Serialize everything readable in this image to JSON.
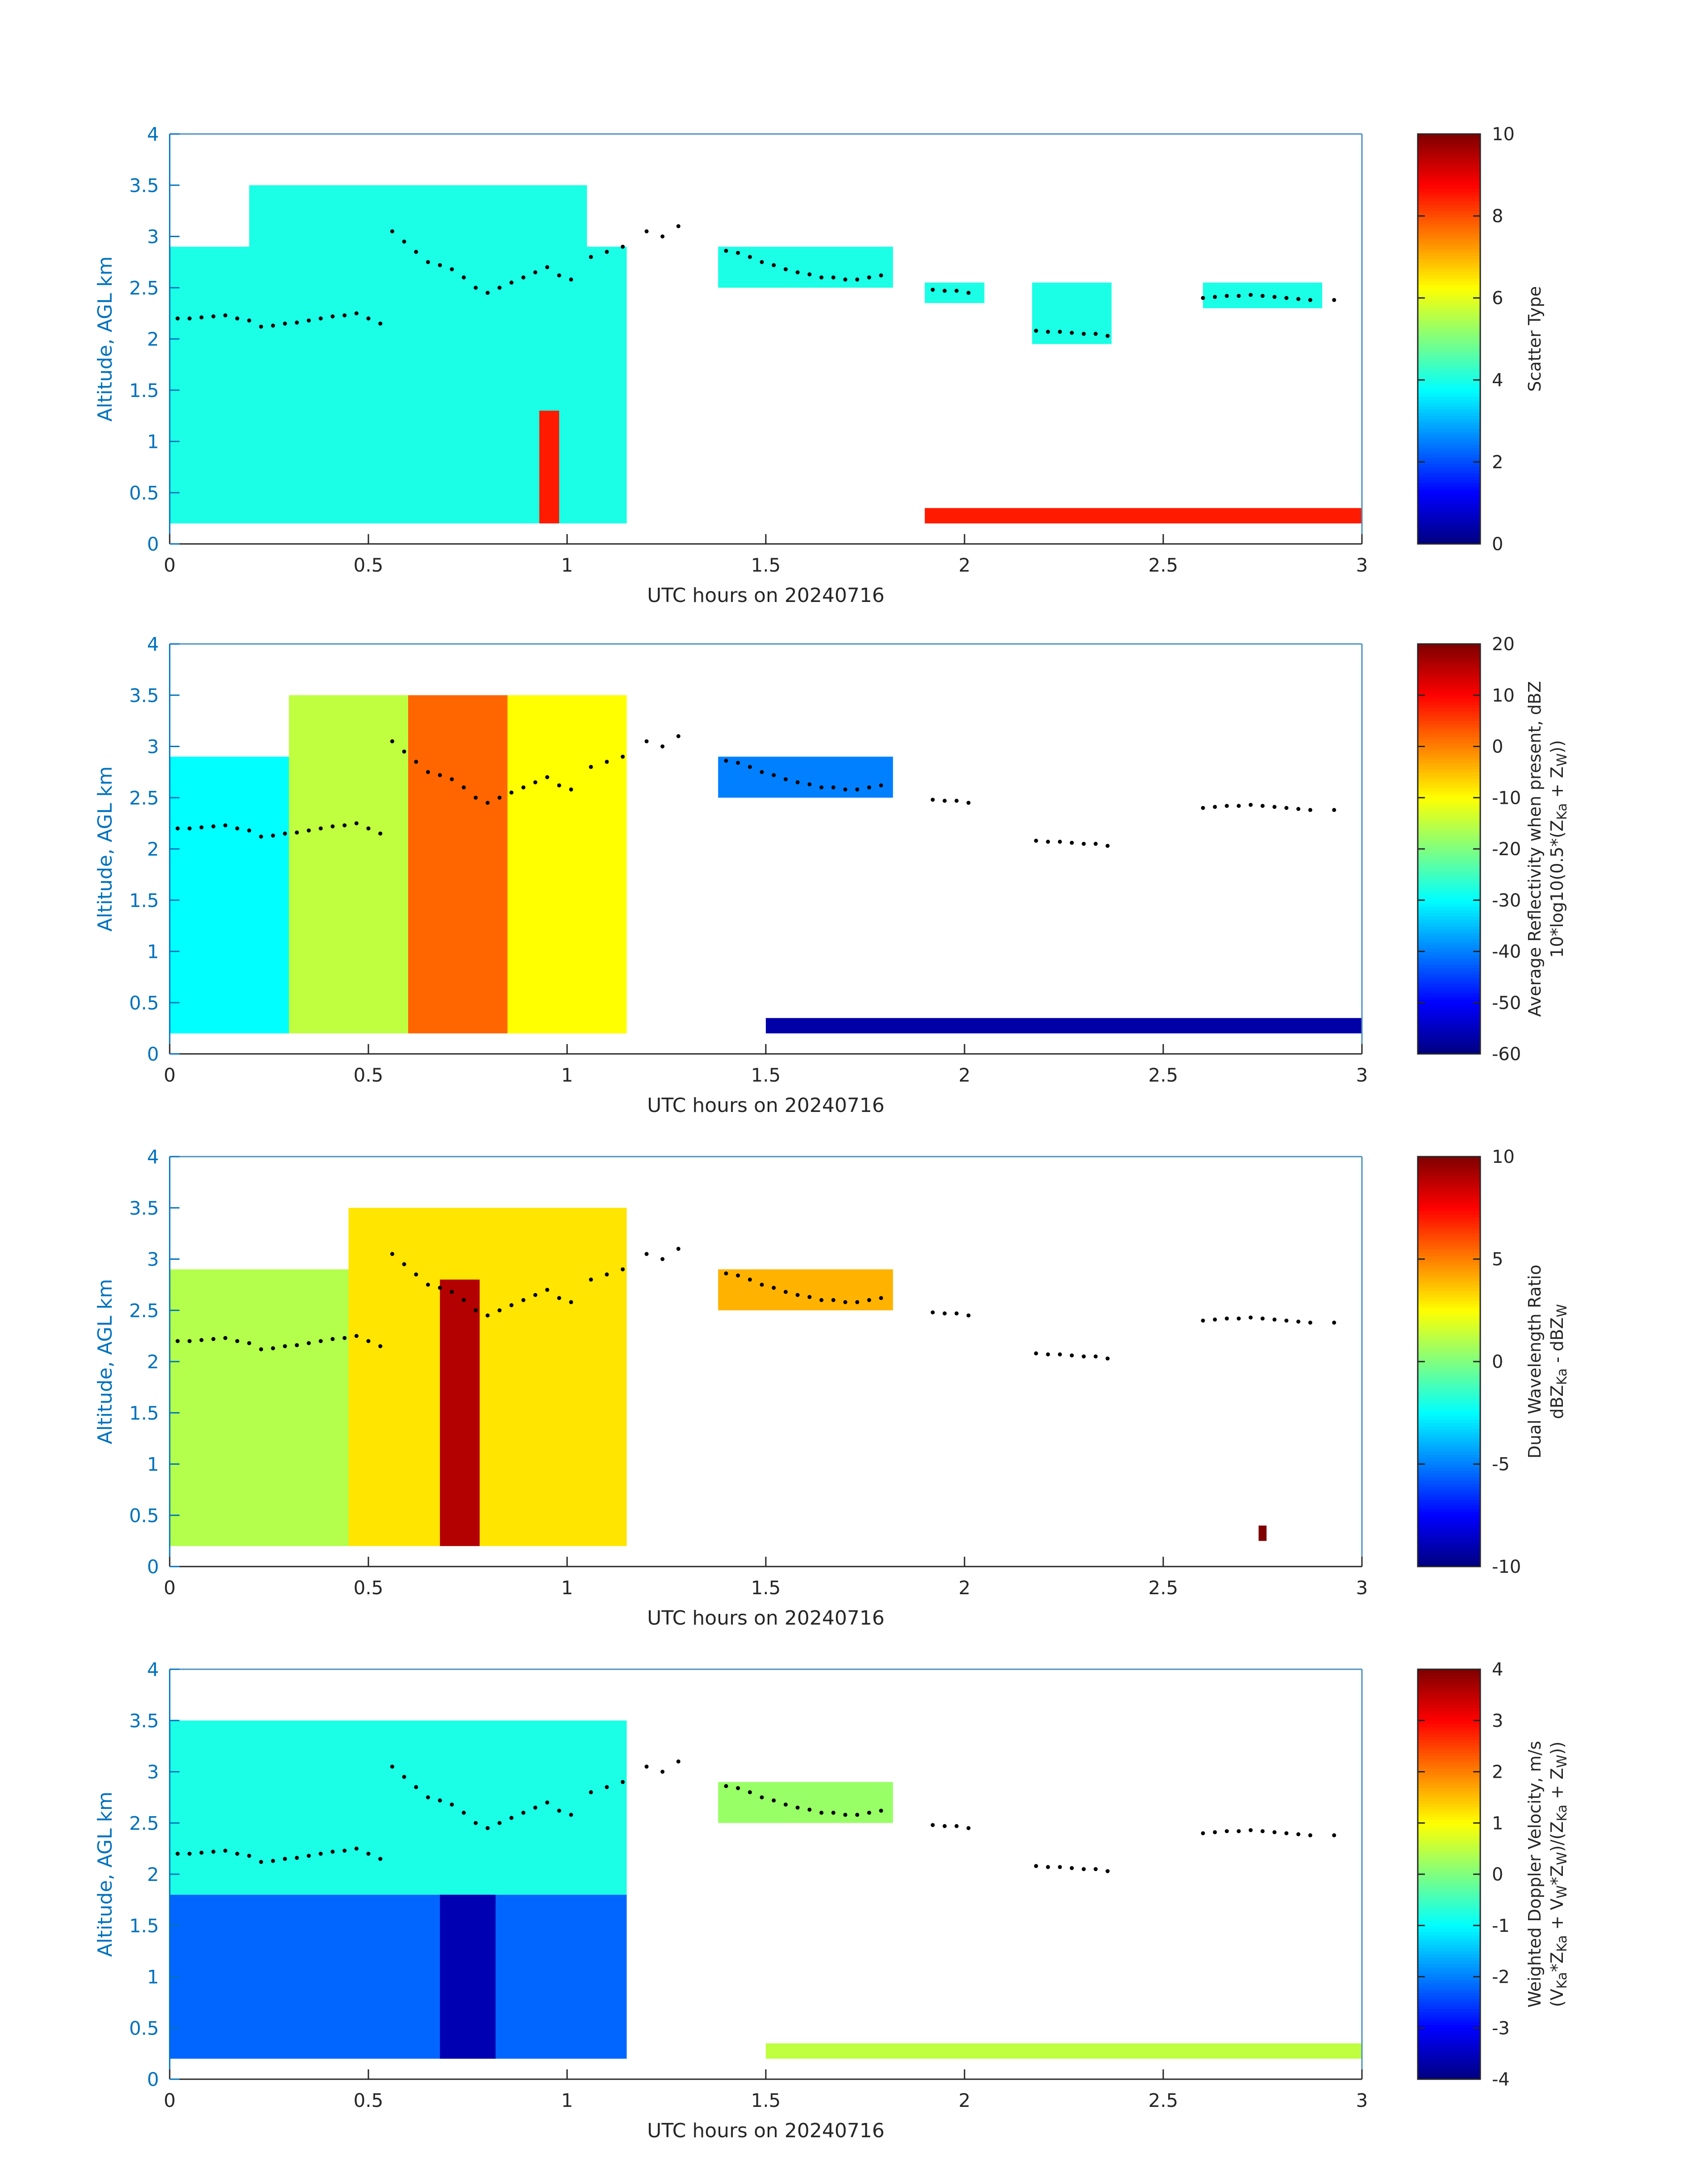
{
  "colors": {
    "axis_left": "#0072BD",
    "axis_frame": "#4a90c0",
    "text": "#262626",
    "tracer": "#000000"
  },
  "chart_data": [
    {
      "type": "heatmap",
      "panel": 1,
      "xlabel": "UTC hours on 20240716",
      "ylabel": "Altitude, AGL km",
      "xlim": [
        0,
        3
      ],
      "ylim": [
        0,
        4
      ],
      "xticks": [
        "0",
        "0.5",
        "1",
        "1.5",
        "2",
        "2.5",
        "3"
      ],
      "yticks": [
        "0",
        "0.5",
        "1",
        "1.5",
        "2",
        "2.5",
        "3",
        "3.5",
        "4"
      ],
      "colorbar": {
        "label": "Scatter Type",
        "range": [
          0,
          10
        ],
        "ticks": [
          "0",
          "2",
          "4",
          "6",
          "8",
          "10"
        ],
        "colormap": "jet"
      },
      "regions": [
        {
          "x": [
            0.0,
            1.15
          ],
          "y": [
            0.2,
            2.9
          ],
          "value": 4
        },
        {
          "x": [
            0.2,
            1.05
          ],
          "y": [
            2.5,
            3.5
          ],
          "value": 4
        },
        {
          "x": [
            1.38,
            1.82
          ],
          "y": [
            2.5,
            2.9
          ],
          "value": 4
        },
        {
          "x": [
            1.9,
            2.05
          ],
          "y": [
            2.35,
            2.55
          ],
          "value": 4
        },
        {
          "x": [
            2.17,
            2.37
          ],
          "y": [
            1.95,
            2.55
          ],
          "value": 4
        },
        {
          "x": [
            2.6,
            2.9
          ],
          "y": [
            2.3,
            2.55
          ],
          "value": 4
        },
        {
          "x": [
            0.93,
            0.98
          ],
          "y": [
            0.2,
            1.3
          ],
          "value": 8.5
        },
        {
          "x": [
            1.9,
            3.0
          ],
          "y": [
            0.2,
            0.35
          ],
          "value": 8.5
        }
      ]
    },
    {
      "type": "heatmap",
      "panel": 2,
      "xlabel": "UTC hours on 20240716",
      "ylabel": "Altitude, AGL km",
      "xlim": [
        0,
        3
      ],
      "ylim": [
        0,
        4
      ],
      "xticks": [
        "0",
        "0.5",
        "1",
        "1.5",
        "2",
        "2.5",
        "3"
      ],
      "yticks": [
        "0",
        "0.5",
        "1",
        "1.5",
        "2",
        "2.5",
        "3",
        "3.5",
        "4"
      ],
      "colorbar": {
        "label_line1": "Average Reflectivity when present, dBZ",
        "label_line2": "10*log10(0.5*(Z",
        "range": [
          -60,
          20
        ],
        "ticks": [
          "-60",
          "-50",
          "-40",
          "-30",
          "-20",
          "-10",
          "0",
          "10",
          "20"
        ],
        "colormap": "jet"
      },
      "regions": [
        {
          "x": [
            0.0,
            0.3
          ],
          "y": [
            0.2,
            2.9
          ],
          "value": -30
        },
        {
          "x": [
            0.3,
            0.6
          ],
          "y": [
            0.2,
            3.5
          ],
          "value": -15
        },
        {
          "x": [
            0.6,
            0.85
          ],
          "y": [
            0.2,
            3.5
          ],
          "value": 2
        },
        {
          "x": [
            0.85,
            1.15
          ],
          "y": [
            0.2,
            3.5
          ],
          "value": -10
        },
        {
          "x": [
            1.38,
            1.82
          ],
          "y": [
            2.5,
            2.9
          ],
          "value": -40
        },
        {
          "x": [
            1.5,
            3.0
          ],
          "y": [
            0.2,
            0.35
          ],
          "value": -57
        }
      ]
    },
    {
      "type": "heatmap",
      "panel": 3,
      "xlabel": "UTC hours on 20240716",
      "ylabel": "Altitude, AGL km",
      "xlim": [
        0,
        3
      ],
      "ylim": [
        0,
        4
      ],
      "xticks": [
        "0",
        "0.5",
        "1",
        "1.5",
        "2",
        "2.5",
        "3"
      ],
      "yticks": [
        "0",
        "0.5",
        "1",
        "1.5",
        "2",
        "2.5",
        "3",
        "3.5",
        "4"
      ],
      "colorbar": {
        "label_line1": "Dual Wavelength Ratio",
        "label_line2": "dBZ",
        "range": [
          -10,
          10
        ],
        "ticks": [
          "-10",
          "-5",
          "0",
          "5",
          "10"
        ],
        "colormap": "jet"
      },
      "regions": [
        {
          "x": [
            0.0,
            0.45
          ],
          "y": [
            0.2,
            2.9
          ],
          "value": 1
        },
        {
          "x": [
            0.45,
            1.15
          ],
          "y": [
            0.2,
            3.5
          ],
          "value": 3
        },
        {
          "x": [
            0.68,
            0.78
          ],
          "y": [
            0.2,
            2.8
          ],
          "value": 9
        },
        {
          "x": [
            1.38,
            1.82
          ],
          "y": [
            2.5,
            2.9
          ],
          "value": 4
        },
        {
          "x": [
            2.74,
            2.76
          ],
          "y": [
            0.25,
            0.4
          ],
          "value": 10
        }
      ]
    },
    {
      "type": "heatmap",
      "panel": 4,
      "xlabel": "UTC hours on 20240716",
      "ylabel": "Altitude, AGL km",
      "xlim": [
        0,
        3
      ],
      "ylim": [
        0,
        4
      ],
      "xticks": [
        "0",
        "0.5",
        "1",
        "1.5",
        "2",
        "2.5",
        "3"
      ],
      "yticks": [
        "0",
        "0.5",
        "1",
        "1.5",
        "2",
        "2.5",
        "3",
        "3.5",
        "4"
      ],
      "colorbar": {
        "label_line1": "Weighted Doppler Velocity, m/s",
        "label_line2": "(V",
        "range": [
          -4,
          4
        ],
        "ticks": [
          "-4",
          "-3",
          "-2",
          "-1",
          "0",
          "1",
          "2",
          "3",
          "4"
        ],
        "colormap": "jet"
      },
      "regions": [
        {
          "x": [
            0.0,
            1.15
          ],
          "y": [
            1.8,
            3.5
          ],
          "value": -0.8
        },
        {
          "x": [
            0.0,
            1.15
          ],
          "y": [
            0.2,
            1.8
          ],
          "value": -2.2
        },
        {
          "x": [
            0.68,
            0.82
          ],
          "y": [
            0.2,
            1.8
          ],
          "value": -3.6
        },
        {
          "x": [
            1.38,
            1.82
          ],
          "y": [
            2.5,
            2.9
          ],
          "value": 0.2
        },
        {
          "x": [
            1.5,
            3.0
          ],
          "y": [
            0.2,
            0.35
          ],
          "value": 0.5
        }
      ]
    }
  ],
  "tracer_points": [
    [
      0.02,
      2.2
    ],
    [
      0.05,
      2.2
    ],
    [
      0.08,
      2.21
    ],
    [
      0.11,
      2.22
    ],
    [
      0.14,
      2.23
    ],
    [
      0.17,
      2.2
    ],
    [
      0.2,
      2.18
    ],
    [
      0.23,
      2.12
    ],
    [
      0.26,
      2.13
    ],
    [
      0.29,
      2.15
    ],
    [
      0.32,
      2.16
    ],
    [
      0.35,
      2.18
    ],
    [
      0.38,
      2.2
    ],
    [
      0.41,
      2.22
    ],
    [
      0.44,
      2.23
    ],
    [
      0.47,
      2.25
    ],
    [
      0.5,
      2.2
    ],
    [
      0.53,
      2.15
    ],
    [
      0.56,
      3.05
    ],
    [
      0.59,
      2.95
    ],
    [
      0.62,
      2.85
    ],
    [
      0.65,
      2.75
    ],
    [
      0.68,
      2.72
    ],
    [
      0.71,
      2.68
    ],
    [
      0.74,
      2.6
    ],
    [
      0.77,
      2.5
    ],
    [
      0.8,
      2.45
    ],
    [
      0.83,
      2.5
    ],
    [
      0.86,
      2.55
    ],
    [
      0.89,
      2.6
    ],
    [
      0.92,
      2.65
    ],
    [
      0.95,
      2.7
    ],
    [
      0.98,
      2.62
    ],
    [
      1.01,
      2.58
    ],
    [
      1.06,
      2.8
    ],
    [
      1.1,
      2.85
    ],
    [
      1.14,
      2.9
    ],
    [
      1.2,
      3.05
    ],
    [
      1.24,
      3.0
    ],
    [
      1.28,
      3.1
    ],
    [
      1.4,
      2.86
    ],
    [
      1.43,
      2.84
    ],
    [
      1.46,
      2.8
    ],
    [
      1.49,
      2.75
    ],
    [
      1.52,
      2.72
    ],
    [
      1.55,
      2.68
    ],
    [
      1.58,
      2.65
    ],
    [
      1.61,
      2.63
    ],
    [
      1.64,
      2.6
    ],
    [
      1.67,
      2.6
    ],
    [
      1.7,
      2.58
    ],
    [
      1.73,
      2.58
    ],
    [
      1.76,
      2.6
    ],
    [
      1.79,
      2.62
    ],
    [
      1.92,
      2.48
    ],
    [
      1.95,
      2.47
    ],
    [
      1.98,
      2.47
    ],
    [
      2.01,
      2.45
    ],
    [
      2.18,
      2.08
    ],
    [
      2.21,
      2.07
    ],
    [
      2.24,
      2.07
    ],
    [
      2.27,
      2.06
    ],
    [
      2.3,
      2.05
    ],
    [
      2.33,
      2.05
    ],
    [
      2.36,
      2.03
    ],
    [
      2.6,
      2.4
    ],
    [
      2.63,
      2.41
    ],
    [
      2.66,
      2.42
    ],
    [
      2.69,
      2.42
    ],
    [
      2.72,
      2.43
    ],
    [
      2.75,
      2.42
    ],
    [
      2.78,
      2.41
    ],
    [
      2.81,
      2.4
    ],
    [
      2.84,
      2.39
    ],
    [
      2.87,
      2.38
    ],
    [
      2.93,
      2.38
    ]
  ],
  "cb_subscripts": {
    "p2": {
      "ka": "Ka",
      "w": "W",
      "plus": " + Z",
      "close": "))"
    },
    "p3": {
      "ka": "Ka",
      "mid": " - dBZ",
      "w": "W"
    },
    "p4": {
      "ka": "Ka",
      "l1": "*Z",
      "l2": " + V",
      "w": "W",
      "l3": "*Z",
      "l4": ")/(Z",
      "l5": " + Z",
      "l6": "))"
    }
  }
}
